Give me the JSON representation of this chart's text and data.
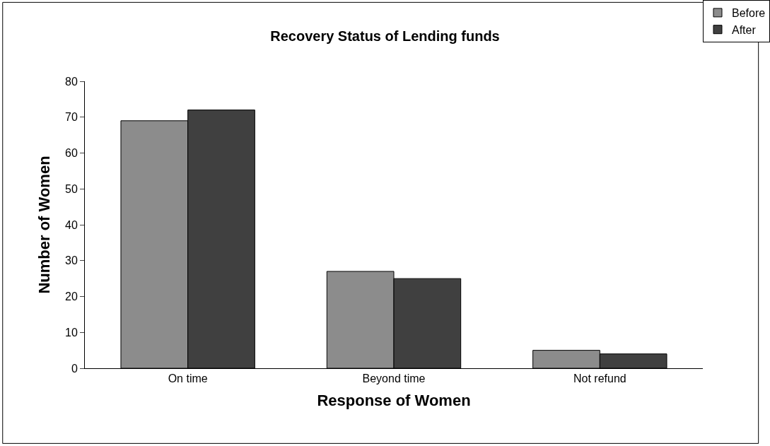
{
  "chart_data": {
    "type": "bar",
    "title": "Recovery Status of Lending funds",
    "xlabel": "Response of Women",
    "ylabel": "Number of Women",
    "categories": [
      "On time",
      "Beyond time",
      "Not refund"
    ],
    "series": [
      {
        "name": "Before",
        "color": "#8c8c8c",
        "values": [
          69,
          27,
          5
        ]
      },
      {
        "name": "After",
        "color": "#404040",
        "values": [
          72,
          25,
          4
        ]
      }
    ],
    "ylim": [
      0,
      80
    ],
    "yticks": [
      0,
      10,
      20,
      30,
      40,
      50,
      60,
      70,
      80
    ],
    "legend": "top right"
  }
}
